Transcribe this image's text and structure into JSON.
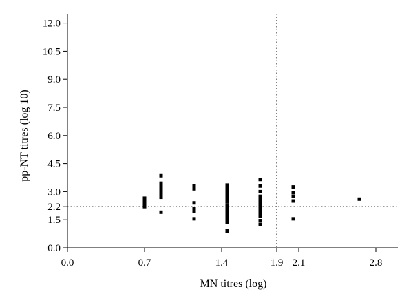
{
  "chart_data": {
    "type": "scatter",
    "xlabel": "MN titres (log)",
    "ylabel": "pp-NT titres (log 10)",
    "xlim": [
      0,
      3.0
    ],
    "ylim": [
      0,
      12.5
    ],
    "x_ticks": [
      0.0,
      0.7,
      1.4,
      1.9,
      2.1,
      2.8
    ],
    "x_tick_labels": [
      "0.0",
      "0.7",
      "1.4",
      "1.9",
      "2.1",
      "2.8"
    ],
    "y_ticks": [
      0.0,
      1.5,
      2.2,
      3.0,
      4.5,
      6.0,
      7.5,
      9.0,
      10.5,
      12.0
    ],
    "y_tick_labels": [
      "0.0",
      "1.5",
      "2.2",
      "3.0",
      "4.5",
      "6.0",
      "7.5",
      "9.0",
      "10.5",
      "12.0"
    ],
    "grid": false,
    "reference_lines": [
      {
        "orientation": "vertical",
        "value": 1.9,
        "style": "dotted"
      },
      {
        "orientation": "horizontal",
        "value": 2.2,
        "style": "dotted"
      }
    ],
    "marker": "square",
    "marker_color": "#000000",
    "series": [
      {
        "points": [
          [
            0.7,
            2.2
          ],
          [
            0.7,
            2.35
          ],
          [
            0.7,
            2.5
          ],
          [
            0.7,
            2.65
          ],
          [
            0.85,
            1.9
          ],
          [
            0.85,
            2.7
          ],
          [
            0.85,
            2.85
          ],
          [
            0.85,
            3.0
          ],
          [
            0.85,
            3.15
          ],
          [
            0.85,
            3.3
          ],
          [
            0.85,
            3.45
          ],
          [
            0.85,
            3.85
          ],
          [
            1.15,
            1.55
          ],
          [
            1.15,
            1.95
          ],
          [
            1.15,
            2.1
          ],
          [
            1.15,
            2.4
          ],
          [
            1.15,
            3.15
          ],
          [
            1.15,
            3.3
          ],
          [
            1.45,
            0.9
          ],
          [
            1.45,
            1.35
          ],
          [
            1.45,
            1.5
          ],
          [
            1.45,
            1.65
          ],
          [
            1.45,
            1.8
          ],
          [
            1.45,
            1.95
          ],
          [
            1.45,
            2.1
          ],
          [
            1.45,
            2.25
          ],
          [
            1.45,
            2.45
          ],
          [
            1.45,
            2.6
          ],
          [
            1.45,
            2.75
          ],
          [
            1.45,
            2.9
          ],
          [
            1.45,
            3.05
          ],
          [
            1.45,
            3.2
          ],
          [
            1.45,
            3.35
          ],
          [
            1.75,
            1.25
          ],
          [
            1.75,
            1.45
          ],
          [
            1.75,
            1.7
          ],
          [
            1.75,
            1.85
          ],
          [
            1.75,
            2.0
          ],
          [
            1.75,
            2.15
          ],
          [
            1.75,
            2.3
          ],
          [
            1.75,
            2.45
          ],
          [
            1.75,
            2.6
          ],
          [
            1.75,
            2.75
          ],
          [
            1.75,
            3.0
          ],
          [
            1.75,
            3.3
          ],
          [
            1.75,
            3.65
          ],
          [
            2.05,
            1.55
          ],
          [
            2.05,
            2.5
          ],
          [
            2.05,
            2.75
          ],
          [
            2.05,
            2.95
          ],
          [
            2.05,
            3.25
          ],
          [
            2.65,
            2.6
          ]
        ]
      }
    ]
  }
}
